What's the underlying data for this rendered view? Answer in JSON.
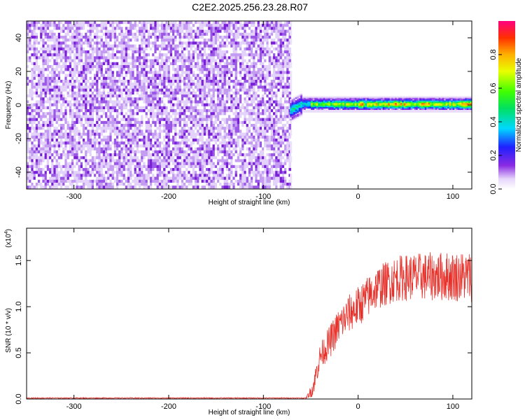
{
  "title": "C2E2.2025.256.23.28.R07",
  "chart_data": [
    {
      "type": "heatmap",
      "name": "spectrogram",
      "xlabel": "Height of straight line (km)",
      "ylabel": "Frequency (Hz)",
      "xlim": [
        -350,
        120
      ],
      "ylim": [
        -50,
        50
      ],
      "xticks": [
        -300,
        -200,
        -100,
        0,
        100
      ],
      "yticks": [
        -40,
        -20,
        0,
        20,
        40
      ],
      "noise_region_x": [
        -350,
        -72
      ],
      "signal_region_x": [
        -72,
        120
      ],
      "signal_center_hz": 0.5,
      "signal_halfwidth_hz": 3,
      "colorbar": {
        "label": "Normalized spectral amplitude",
        "range": [
          0,
          1
        ],
        "ticks": [
          0.0,
          0.2,
          0.4,
          0.6,
          0.8
        ],
        "tick_labels": [
          "0.0",
          "0.2",
          "0.4",
          "0.6",
          "0.8"
        ]
      }
    },
    {
      "type": "line",
      "name": "snr",
      "xlabel": "Height of straight line (km)",
      "ylabel": "SNR (10 * v/v)",
      "scale_label": "(x10",
      "scale_exponent": "4",
      "xlim": [
        -350,
        120
      ],
      "ylim": [
        0,
        1.85
      ],
      "xticks": [
        -300,
        -200,
        -100,
        0,
        100
      ],
      "yticks": [
        0.0,
        0.5,
        1.0,
        1.5
      ],
      "ytick_labels": [
        "0.0",
        "0.5",
        "1.0",
        "1.5"
      ],
      "color": "#e8302a",
      "trend": [
        {
          "x": -350,
          "y": 0.01
        },
        {
          "x": -55,
          "y": 0.01
        },
        {
          "x": -48,
          "y": 0.1
        },
        {
          "x": -40,
          "y": 0.45
        },
        {
          "x": -30,
          "y": 0.6
        },
        {
          "x": -20,
          "y": 0.78
        },
        {
          "x": -10,
          "y": 0.9
        },
        {
          "x": 0,
          "y": 0.98
        },
        {
          "x": 20,
          "y": 1.18
        },
        {
          "x": 40,
          "y": 1.28
        },
        {
          "x": 60,
          "y": 1.3
        },
        {
          "x": 80,
          "y": 1.3
        },
        {
          "x": 100,
          "y": 1.3
        },
        {
          "x": 120,
          "y": 1.3
        }
      ],
      "noise_amplitude": [
        {
          "x": -350,
          "a": 0.005
        },
        {
          "x": -55,
          "a": 0.005
        },
        {
          "x": -45,
          "a": 0.12
        },
        {
          "x": -30,
          "a": 0.18
        },
        {
          "x": 0,
          "a": 0.22
        },
        {
          "x": 40,
          "a": 0.25
        },
        {
          "x": 120,
          "a": 0.28
        }
      ]
    }
  ]
}
